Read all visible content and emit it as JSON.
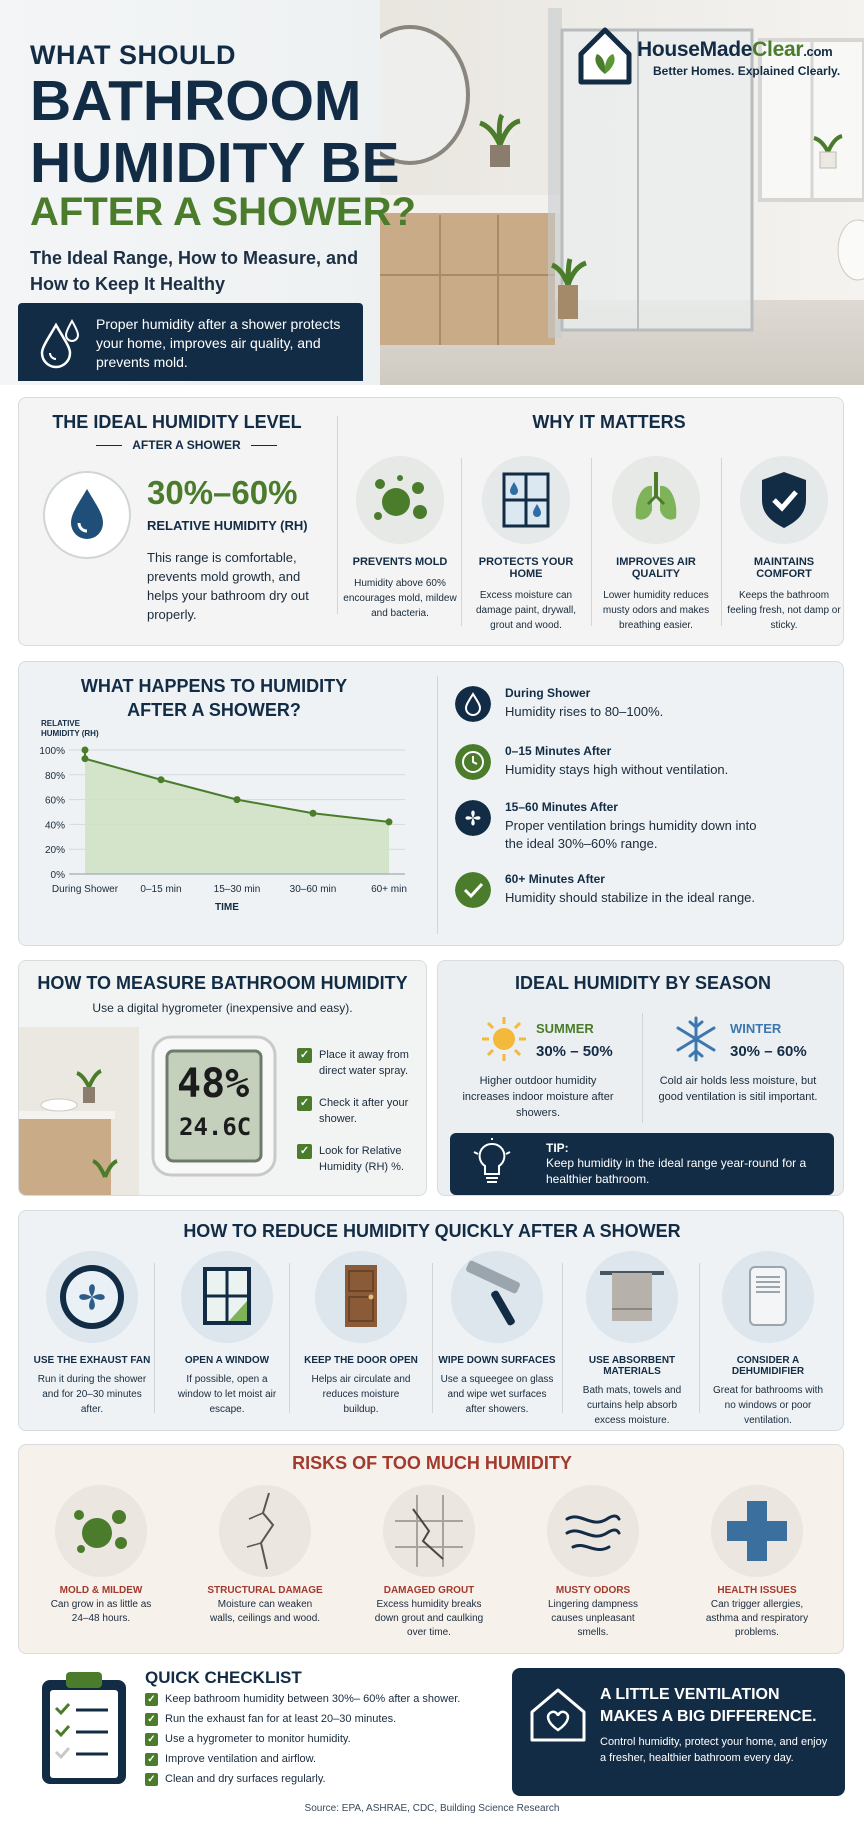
{
  "hero": {
    "title_line1": "WHAT SHOULD",
    "title_line2": "BATHROOM HUMIDITY BE",
    "title_line3": "AFTER A SHOWER?",
    "subtitle": "The Ideal Range, How to Measure, and How to Keep It Healthy",
    "callout": "Proper humidity after a shower protects your home, improves air quality, and prevents mold.",
    "logo_name_a": "HouseMade",
    "logo_name_b": "Clear",
    "logo_name_c": ".com",
    "logo_tagline": "Better Homes. Explained Clearly."
  },
  "ideal": {
    "title": "THE IDEAL HUMIDITY LEVEL",
    "subtitle": "AFTER A SHOWER",
    "range": "30%–60%",
    "unit": "RELATIVE HUMIDITY (RH)",
    "description": "This range is comfortable, prevents mold growth, and helps your bathroom dry out properly."
  },
  "why": {
    "title": "WHY IT MATTERS",
    "items": [
      {
        "label": "PREVENTS MOLD",
        "desc": "Humidity above 60% encourages mold, mildew and bacteria."
      },
      {
        "label": "PROTECTS YOUR HOME",
        "desc": "Excess moisture can damage paint, drywall, grout and wood."
      },
      {
        "label": "IMPROVES AIR QUALITY",
        "desc": "Lower humidity reduces musty odors and makes breathing easier."
      },
      {
        "label": "MAINTAINS COMFORT",
        "desc": "Keeps the bathroom feeling fresh, not damp or sticky."
      }
    ]
  },
  "chart_section": {
    "title": "WHAT HAPPENS TO HUMIDITY AFTER A SHOWER?",
    "timeline": [
      {
        "head": "During Shower",
        "text": "Humidity rises to 80–100%."
      },
      {
        "head": "0–15 Minutes After",
        "text": "Humidity stays high without ventilation."
      },
      {
        "head": "15–60 Minutes After",
        "text": "Proper ventilation brings humidity down into the ideal 30%–60% range."
      },
      {
        "head": "60+ Minutes After",
        "text": "Humidity should stabilize in the ideal range."
      }
    ]
  },
  "chart_data": {
    "type": "area",
    "ylabel": "RELATIVE HUMIDITY (RH)",
    "xlabel": "TIME",
    "y_ticks": [
      "0%",
      "20%",
      "40%",
      "60%",
      "80%",
      "100%"
    ],
    "ylim": [
      0,
      100
    ],
    "categories": [
      "During Shower",
      "0–15 min",
      "15–30 min",
      "30–60 min",
      "60+ min"
    ],
    "points": [
      {
        "x": 0,
        "y": 100
      },
      {
        "x": 0,
        "y": 93
      },
      {
        "x": 1,
        "y": 76
      },
      {
        "x": 2,
        "y": 60
      },
      {
        "x": 3,
        "y": 49
      },
      {
        "x": 4,
        "y": 42
      }
    ],
    "grid": true
  },
  "measure": {
    "title": "HOW TO MEASURE BATHROOM HUMIDITY",
    "subtitle": "Use a digital hygrometer (inexpensive and easy).",
    "display_top": "48%",
    "display_bottom": "24.6C",
    "checks": [
      "Place it away from direct water spray.",
      "Check it after your shower.",
      "Look for Relative Humidity (RH) %."
    ]
  },
  "season": {
    "title": "IDEAL HUMIDITY BY SEASON",
    "summer_name": "SUMMER",
    "summer_range": "30% – 50%",
    "summer_desc": "Higher outdoor humidity increases indoor moisture after showers.",
    "winter_name": "WINTER",
    "winter_range": "30% – 60%",
    "winter_desc": "Cold air holds less moisture, but good ventilation is sitil important.",
    "tip_head": "TIP:",
    "tip_text": "Keep humidity in the ideal range year-round for a healthier bathroom."
  },
  "reduce": {
    "title": "HOW TO REDUCE HUMIDITY QUICKLY AFTER A SHOWER",
    "items": [
      {
        "label": "USE THE EXHAUST FAN",
        "desc": "Run it during the shower and for 20–30 minutes after."
      },
      {
        "label": "OPEN A WINDOW",
        "desc": "If possible, open a window to let moist air escape."
      },
      {
        "label": "KEEP THE DOOR OPEN",
        "desc": "Helps air circulate and reduces moisture buildup."
      },
      {
        "label": "WIPE DOWN SURFACES",
        "desc": "Use a squeegee on glass and wipe wet surfaces after showers."
      },
      {
        "label": "USE ABSORBENT MATERIALS",
        "desc": "Bath mats, towels and curtains help absorb excess moisture."
      },
      {
        "label": "CONSIDER A DEHUMIDIFIER",
        "desc": "Great for bathrooms with no windows or poor ventilation."
      }
    ]
  },
  "risks": {
    "title": "RISKS OF TOO MUCH HUMIDITY",
    "items": [
      {
        "label": "MOLD & MILDEW",
        "desc": "Can grow in as little as 24–48 hours."
      },
      {
        "label": "STRUCTURAL DAMAGE",
        "desc": "Moisture can weaken walls, ceilings and wood."
      },
      {
        "label": "DAMAGED GROUT",
        "desc": "Excess humidity breaks down grout and caulking over time."
      },
      {
        "label": "MUSTY ODORS",
        "desc": "Lingering dampness causes unpleasant smells."
      },
      {
        "label": "HEALTH ISSUES",
        "desc": "Can trigger allergies, asthma and respiratory problems."
      }
    ]
  },
  "checklist": {
    "title": "QUICK CHECKLIST",
    "items": [
      "Keep bathroom humidity between 30%– 60% after a shower.",
      "Run the exhaust fan for at least 20–30 minutes.",
      "Use a hygrometer to monitor humidity.",
      "Improve ventilation and airflow.",
      "Clean and dry surfaces regularly."
    ]
  },
  "ventilation": {
    "head": "A LITTLE VENTILATION MAKES A BIG DIFFERENCE.",
    "text": "Control humidity, protect your home, and enjoy a fresher, healthier bathroom every day."
  },
  "source": "Source: EPA, ASHRAE, CDC, Building Science Research",
  "colors": {
    "navy": "#132c45",
    "green": "#4a7c2b",
    "red": "#a33a2e",
    "panel": "#f3f4f3"
  }
}
